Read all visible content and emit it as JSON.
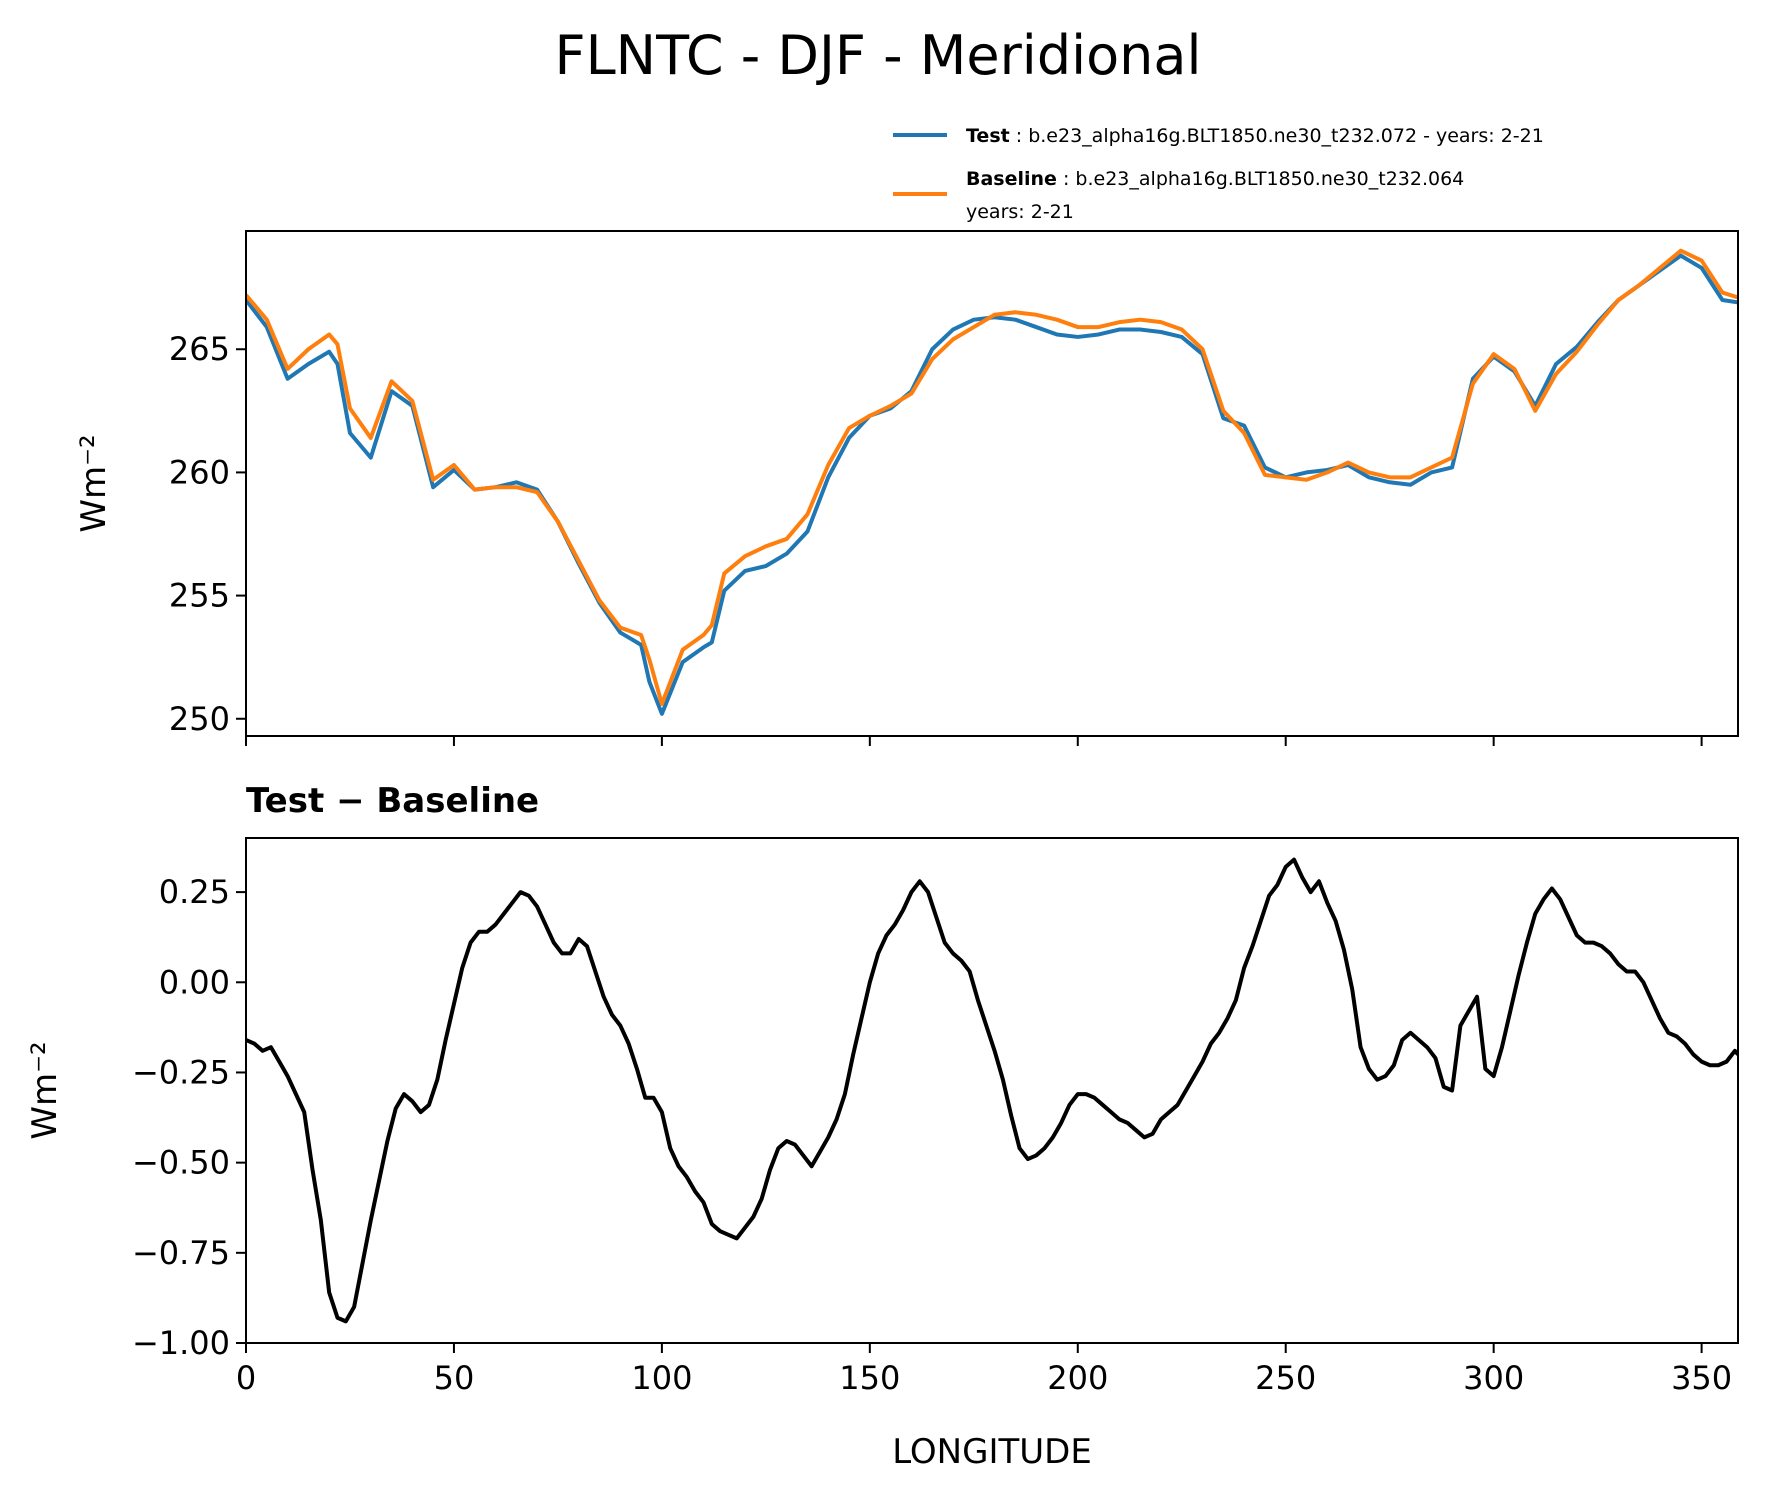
{
  "title": "FLNTC - DJF - Meridional",
  "legend": {
    "test": {
      "name": "Test",
      "desc": ": b.e23_alpha16g.BLT1850.ne30_t232.072 - years: 2-21"
    },
    "baseline": {
      "name": "Baseline",
      "desc": ": b.e23_alpha16g.BLT1850.ne30_t232.064",
      "desc2": "years: 2-21"
    }
  },
  "colors": {
    "test": "#1f77b4",
    "baseline": "#ff7f0e",
    "diff": "#000000"
  },
  "chart_data": [
    {
      "type": "line",
      "ylabel": "Wm⁻²",
      "xlim": [
        0,
        358.75
      ],
      "ylim": [
        249.3,
        269.8
      ],
      "yticks": [
        250,
        255,
        260,
        265
      ],
      "xticks": [
        0,
        50,
        100,
        150,
        200,
        250,
        300,
        350
      ],
      "x": [
        0,
        5,
        10,
        15,
        20,
        22,
        25,
        30,
        35,
        40,
        45,
        50,
        55,
        60,
        65,
        70,
        75,
        80,
        85,
        90,
        95,
        97,
        100,
        105,
        110,
        112,
        115,
        120,
        125,
        130,
        135,
        140,
        145,
        150,
        155,
        160,
        165,
        170,
        175,
        180,
        185,
        190,
        195,
        200,
        205,
        210,
        215,
        220,
        225,
        230,
        235,
        240,
        245,
        250,
        255,
        260,
        265,
        270,
        275,
        280,
        285,
        290,
        295,
        300,
        305,
        310,
        315,
        320,
        325,
        330,
        335,
        340,
        345,
        350,
        355,
        358.75
      ],
      "series": [
        {
          "name": "Test",
          "values": [
            267.0,
            265.9,
            263.8,
            264.4,
            264.9,
            264.4,
            261.6,
            260.6,
            263.3,
            262.7,
            259.4,
            260.1,
            259.3,
            259.4,
            259.6,
            259.3,
            258.0,
            256.3,
            254.7,
            253.5,
            253.0,
            251.5,
            250.2,
            252.3,
            252.9,
            253.1,
            255.2,
            256.0,
            256.2,
            256.7,
            257.6,
            259.8,
            261.4,
            262.3,
            262.6,
            263.3,
            265.0,
            265.8,
            266.2,
            266.3,
            266.2,
            265.9,
            265.6,
            265.5,
            265.6,
            265.8,
            265.8,
            265.7,
            265.5,
            264.8,
            262.2,
            261.9,
            260.2,
            259.8,
            260.0,
            260.1,
            260.3,
            259.8,
            259.6,
            259.5,
            260.0,
            260.2,
            263.8,
            264.7,
            264.1,
            262.7,
            264.4,
            265.1,
            266.1,
            267.0,
            267.6,
            268.2,
            268.8,
            268.3,
            267.0,
            266.9
          ]
        },
        {
          "name": "Baseline",
          "values": [
            267.2,
            266.2,
            264.2,
            265.0,
            265.6,
            265.2,
            262.6,
            261.4,
            263.7,
            262.9,
            259.7,
            260.3,
            259.3,
            259.4,
            259.4,
            259.2,
            258.0,
            256.4,
            254.8,
            253.7,
            253.4,
            252.4,
            250.6,
            252.8,
            253.4,
            253.8,
            255.9,
            256.6,
            257.0,
            257.3,
            258.3,
            260.3,
            261.8,
            262.3,
            262.7,
            263.2,
            264.6,
            265.4,
            265.9,
            266.4,
            266.5,
            266.4,
            266.2,
            265.9,
            265.9,
            266.1,
            266.2,
            266.1,
            265.8,
            265.0,
            262.5,
            261.6,
            259.9,
            259.8,
            259.7,
            260.0,
            260.4,
            260.0,
            259.8,
            259.8,
            260.2,
            260.6,
            263.6,
            264.8,
            264.2,
            262.5,
            264.0,
            264.9,
            266.0,
            267.0,
            267.6,
            268.3,
            269.0,
            268.6,
            267.3,
            267.1
          ]
        }
      ]
    },
    {
      "type": "line",
      "title": "Test − Baseline",
      "xlabel": "LONGITUDE",
      "ylabel": "Wm⁻²",
      "xlim": [
        0,
        358.75
      ],
      "ylim": [
        -1.0,
        0.4
      ],
      "yticks": [
        -1.0,
        -0.75,
        -0.5,
        -0.25,
        0.0,
        0.25
      ],
      "ytick_labels": [
        "−1.00",
        "−0.75",
        "−0.50",
        "−0.25",
        "0.00",
        "0.25"
      ],
      "xticks": [
        0,
        50,
        100,
        150,
        200,
        250,
        300,
        350
      ],
      "x": [
        0,
        2,
        4,
        6,
        8,
        10,
        12,
        14,
        16,
        18,
        20,
        22,
        24,
        26,
        28,
        30,
        32,
        34,
        36,
        38,
        40,
        42,
        44,
        46,
        48,
        50,
        52,
        54,
        56,
        58,
        60,
        62,
        64,
        66,
        68,
        70,
        72,
        74,
        76,
        78,
        80,
        82,
        84,
        86,
        88,
        90,
        92,
        94,
        96,
        98,
        100,
        102,
        104,
        106,
        108,
        110,
        112,
        114,
        116,
        118,
        120,
        122,
        124,
        126,
        128,
        130,
        132,
        134,
        136,
        138,
        140,
        142,
        144,
        146,
        148,
        150,
        152,
        154,
        156,
        158,
        160,
        162,
        164,
        166,
        168,
        170,
        172,
        174,
        176,
        178,
        180,
        182,
        184,
        186,
        188,
        190,
        192,
        194,
        196,
        198,
        200,
        202,
        204,
        206,
        208,
        210,
        212,
        214,
        216,
        218,
        220,
        222,
        224,
        226,
        228,
        230,
        232,
        234,
        236,
        238,
        240,
        242,
        244,
        246,
        248,
        250,
        252,
        254,
        256,
        258,
        260,
        262,
        264,
        266,
        268,
        270,
        272,
        274,
        276,
        278,
        280,
        282,
        284,
        286,
        288,
        290,
        292,
        294,
        296,
        298,
        300,
        302,
        304,
        306,
        308,
        310,
        312,
        314,
        316,
        318,
        320,
        322,
        324,
        326,
        328,
        330,
        332,
        334,
        336,
        338,
        340,
        342,
        344,
        346,
        348,
        350,
        352,
        354,
        356,
        358,
        358.75
      ],
      "values": [
        -0.16,
        -0.17,
        -0.19,
        -0.18,
        -0.22,
        -0.26,
        -0.31,
        -0.36,
        -0.52,
        -0.66,
        -0.86,
        -0.93,
        -0.94,
        -0.9,
        -0.78,
        -0.66,
        -0.55,
        -0.44,
        -0.35,
        -0.31,
        -0.33,
        -0.36,
        -0.34,
        -0.27,
        -0.16,
        -0.06,
        0.04,
        0.11,
        0.14,
        0.14,
        0.16,
        0.19,
        0.22,
        0.25,
        0.24,
        0.21,
        0.16,
        0.11,
        0.08,
        0.08,
        0.12,
        0.1,
        0.03,
        -0.04,
        -0.09,
        -0.12,
        -0.17,
        -0.24,
        -0.32,
        -0.32,
        -0.36,
        -0.46,
        -0.51,
        -0.54,
        -0.58,
        -0.61,
        -0.67,
        -0.69,
        -0.7,
        -0.71,
        -0.68,
        -0.65,
        -0.6,
        -0.52,
        -0.46,
        -0.44,
        -0.45,
        -0.48,
        -0.51,
        -0.47,
        -0.43,
        -0.38,
        -0.31,
        -0.2,
        -0.1,
        0.0,
        0.08,
        0.13,
        0.16,
        0.2,
        0.25,
        0.28,
        0.25,
        0.18,
        0.11,
        0.08,
        0.06,
        0.03,
        -0.05,
        -0.12,
        -0.19,
        -0.27,
        -0.37,
        -0.46,
        -0.49,
        -0.48,
        -0.46,
        -0.43,
        -0.39,
        -0.34,
        -0.31,
        -0.31,
        -0.32,
        -0.34,
        -0.36,
        -0.38,
        -0.39,
        -0.41,
        -0.43,
        -0.42,
        -0.38,
        -0.36,
        -0.34,
        -0.3,
        -0.26,
        -0.22,
        -0.17,
        -0.14,
        -0.1,
        -0.05,
        0.04,
        0.1,
        0.17,
        0.24,
        0.27,
        0.32,
        0.34,
        0.29,
        0.25,
        0.28,
        0.22,
        0.17,
        0.09,
        -0.02,
        -0.18,
        -0.24,
        -0.27,
        -0.26,
        -0.23,
        -0.16,
        -0.14,
        -0.16,
        -0.18,
        -0.21,
        -0.29,
        -0.3,
        -0.12,
        -0.08,
        -0.04,
        -0.24,
        -0.26,
        -0.18,
        -0.08,
        0.02,
        0.11,
        0.19,
        0.23,
        0.26,
        0.23,
        0.18,
        0.13,
        0.11,
        0.11,
        0.1,
        0.08,
        0.05,
        0.03,
        0.03,
        0.0,
        -0.05,
        -0.1,
        -0.14,
        -0.15,
        -0.17,
        -0.2,
        -0.22,
        -0.23,
        -0.23,
        -0.22,
        -0.19,
        -0.2
      ]
    }
  ]
}
